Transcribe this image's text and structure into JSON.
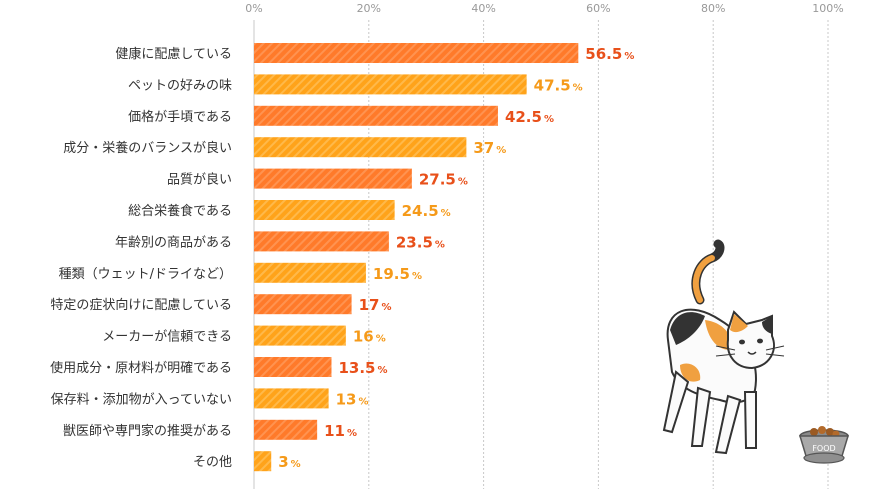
{
  "chart_data": {
    "type": "bar",
    "orientation": "horizontal",
    "categories": [
      "健康に配慮している",
      "ペットの好みの味",
      "価格が手頃である",
      "成分・栄養のバランスが良い",
      "品質が良い",
      "総合栄養食である",
      "年齢別の商品がある",
      "種類（ウェット/ドライなど）",
      "特定の症状向けに配慮している",
      "メーカーが信頼できる",
      "使用成分・原材料が明確である",
      "保存料・添加物が入っていない",
      "獣医師や専門家の推奨がある",
      "その他"
    ],
    "values": [
      56.5,
      47.5,
      42.5,
      37,
      27.5,
      24.5,
      23.5,
      19.5,
      17,
      16,
      13.5,
      13,
      11,
      3
    ],
    "value_labels": [
      "56.5",
      "47.5",
      "42.5",
      "37",
      "27.5",
      "24.5",
      "23.5",
      "19.5",
      "17",
      "16",
      "13.5",
      "13",
      "11",
      "3"
    ],
    "unit": "%",
    "ticks": [
      "0%",
      "20%",
      "40%",
      "60%",
      "80%",
      "100%"
    ],
    "xlim": [
      0,
      100
    ],
    "grid": true,
    "axis_position": "top",
    "bar_colors": [
      "#ff7a2a",
      "#ffa31a"
    ],
    "value_colors": [
      "#e8501a",
      "#f59a1a"
    ]
  },
  "illustration": {
    "bowl_label": "FOOD"
  }
}
